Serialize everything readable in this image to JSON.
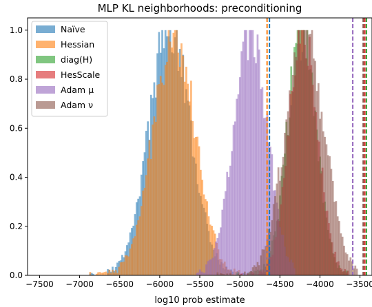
{
  "chart_data": {
    "type": "bar",
    "title": "MLP KL neighborhoods: preconditioning",
    "xlabel": "log10 prob estimate",
    "ylabel": "",
    "xlim": [
      -7650,
      -3350
    ],
    "ylim": [
      0,
      1.05
    ],
    "xticks": [
      -7500,
      -7000,
      -6500,
      -6000,
      -5500,
      -5000,
      -4500,
      -4000,
      -3500
    ],
    "yticks": [
      0.0,
      0.2,
      0.4,
      0.6,
      0.8,
      1.0
    ],
    "grid": false,
    "legend_position": "top-left",
    "series": [
      {
        "name": "Naïve",
        "color": "#1f77b4",
        "mean": -5880,
        "sd": 260,
        "min": -7020,
        "max": -4940,
        "marker_line": -4630
      },
      {
        "name": "Hessian",
        "color": "#ff7f0e",
        "mean": -5820,
        "sd": 260,
        "min": -6880,
        "max": -4930,
        "marker_line": -4660
      },
      {
        "name": "diag(H)",
        "color": "#2ca02c",
        "mean": -4230,
        "sd": 180,
        "min": -5050,
        "max": -3640,
        "marker_line": -3420
      },
      {
        "name": "HesScale",
        "color": "#d62728",
        "mean": -4210,
        "sd": 180,
        "min": -5000,
        "max": -3650,
        "marker_line": -3440
      },
      {
        "name": "Adam μ",
        "color": "#9467bd",
        "mean": -4870,
        "sd": 210,
        "min": -5550,
        "max": -4320,
        "marker_line": -3590
      },
      {
        "name": "Adam ν",
        "color": "#8c564b",
        "mean": -4190,
        "sd": 240,
        "min": -5330,
        "max": -3540,
        "marker_line": -3460
      }
    ]
  }
}
